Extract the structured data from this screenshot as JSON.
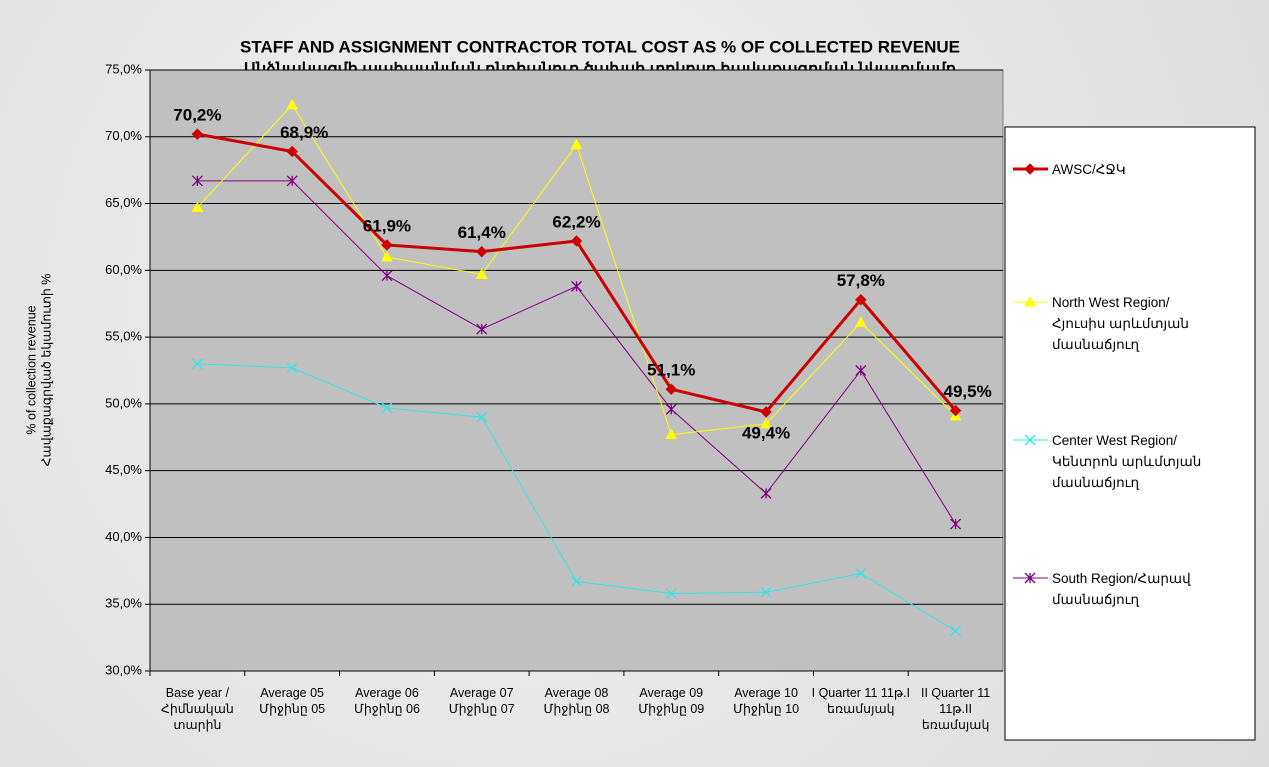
{
  "chart_data": {
    "type": "line",
    "title": "STAFF AND ASSIGNMENT CONTRACTOR TOTAL COST AS % OF COLLECTED REVENUE",
    "subtitle": "Անձնակազմի պահպանման ընդհանուր ծախսի տոկոսը հավաքագրման  նկատմամբ",
    "ylabel": [
      "% of collection revenue",
      "Հավաքագրված եկամուտի %"
    ],
    "categories": [
      "Base year / Հիմնական տարին",
      "Average 05 Միջինը 05",
      "Average 06 Միջինը 06",
      "Average 07 Միջինը 07",
      "Average 08 Միջինը 08",
      "Average 09 Միջինը 09",
      "Average 10 Միջինը 10",
      "I Quarter 11 11թ.I եռամսյակ",
      "II Quarter 11 11թ.II եռամսյակ"
    ],
    "ylim": [
      30,
      75
    ],
    "yticks": [
      {
        "value": 30,
        "label": "30,0%"
      },
      {
        "value": 35,
        "label": "35,0%"
      },
      {
        "value": 40,
        "label": "40,0%"
      },
      {
        "value": 45,
        "label": "45,0%"
      },
      {
        "value": 50,
        "label": "50,0%"
      },
      {
        "value": 55,
        "label": "55,0%"
      },
      {
        "value": 60,
        "label": "60,0%"
      },
      {
        "value": 65,
        "label": "65,0%"
      },
      {
        "value": 70,
        "label": "70,0%"
      },
      {
        "value": 75,
        "label": "75,0%"
      }
    ],
    "grid": true,
    "legend": "right",
    "series": [
      {
        "name": "AWSC/ՀՋԿ",
        "color": "#cc0000",
        "marker": "diamond",
        "linewidth": 3,
        "values": [
          70.2,
          68.9,
          61.9,
          61.4,
          62.2,
          51.1,
          49.4,
          57.8,
          49.5
        ],
        "value_labels": [
          "70,2%",
          "68,9%",
          "61,9%",
          "61,4%",
          "62,2%",
          "51,1%",
          "49,4%",
          "57,8%",
          "49,5%"
        ]
      },
      {
        "name": "North West Region/Հյուսիս արևմտյան մասնաճյուղ",
        "color": "#ffff00",
        "marker": "triangle",
        "linewidth": 1,
        "values": [
          64.7,
          72.4,
          61.0,
          59.7,
          69.4,
          47.7,
          48.5,
          56.1,
          49.1
        ]
      },
      {
        "name": "Center West Region/Կենտրոն արևմտյան մասնաճյուղ",
        "color": "#33e6e6",
        "marker": "x",
        "linewidth": 1,
        "values": [
          53.0,
          52.7,
          49.7,
          49.0,
          36.7,
          35.8,
          35.9,
          37.3,
          33.0
        ]
      },
      {
        "name": "South Region/Հարավ մասնաճյուղ",
        "color": "#800080",
        "marker": "star",
        "linewidth": 1,
        "values": [
          66.7,
          66.7,
          59.6,
          55.6,
          58.8,
          49.6,
          43.3,
          52.5,
          41.0
        ]
      }
    ]
  }
}
